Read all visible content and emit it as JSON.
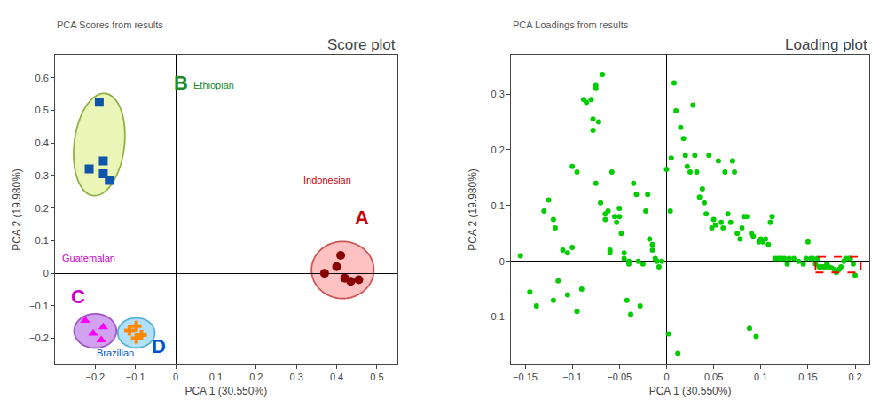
{
  "chart_data": [
    {
      "type": "scatter",
      "title": "Score plot",
      "subtitle": "PCA Scores from results",
      "x_label": "PCA 1 (30.550%)",
      "y_label": "PCA 2 (19.980%)",
      "xlim": [
        -0.3,
        0.55
      ],
      "ylim": [
        -0.28,
        0.67
      ],
      "xticks": [
        -0.2,
        -0.1,
        0.0,
        0.1,
        0.2,
        0.3,
        0.4,
        0.5
      ],
      "yticks": [
        -0.2,
        -0.1,
        0.0,
        0.1,
        0.2,
        0.3,
        0.4,
        0.5,
        0.6
      ],
      "grid": false,
      "series": [
        {
          "marker": "circle",
          "color": "#880000",
          "x": [
            0.37,
            0.4,
            0.42,
            0.435,
            0.41,
            0.455
          ],
          "values": [
            0.0,
            0.02,
            -0.015,
            -0.025,
            0.055,
            -0.02
          ],
          "ellipse": {
            "cx": 0.415,
            "cy": 0.01,
            "width": 0.155,
            "height": 0.175,
            "angle": 0,
            "color": "#ffbbbb",
            "edge_color": "#cc4444"
          },
          "letter": {
            "text": "A",
            "x": 0.44,
            "y": 0.13,
            "color": "#cc0000"
          },
          "label": {
            "text": "Indonesian",
            "x": 0.305,
            "y": 0.265,
            "color": "#cc0000"
          }
        },
        {
          "marker": "square",
          "color": "#1155aa",
          "x": [
            -0.19,
            -0.18,
            -0.215,
            -0.18,
            -0.165
          ],
          "values": [
            0.525,
            0.345,
            0.32,
            0.305,
            0.285
          ],
          "ellipse": {
            "cx": -0.19,
            "cy": 0.395,
            "width": 0.125,
            "height": 0.315,
            "angle": -5,
            "color": "#e8f5b0",
            "edge_color": "#88aa33"
          },
          "letter": {
            "text": "B",
            "x": -0.01,
            "y": 0.545,
            "color": "#228B22"
          },
          "label": {
            "text": "Ethiopian",
            "x": 0.03,
            "y": 0.555,
            "color": "#228B22"
          }
        },
        {
          "marker": "triangle-up",
          "color": "#ff00ff",
          "x": [
            -0.225,
            -0.205,
            -0.185,
            -0.18
          ],
          "values": [
            -0.145,
            -0.185,
            -0.205,
            -0.165
          ],
          "ellipse": {
            "cx": -0.2,
            "cy": -0.177,
            "width": 0.105,
            "height": 0.105,
            "angle": 0,
            "color": "#cc99ee",
            "edge_color": "#9944bb"
          },
          "letter": {
            "text": "C",
            "x": -0.265,
            "y": -0.11,
            "color": "#cc00cc"
          },
          "label": {
            "text": "Guatemalan",
            "x": -0.295,
            "y": 0.025,
            "color": "#cc00cc"
          }
        },
        {
          "marker": "cross",
          "color": "#ff8800",
          "x": [
            -0.115,
            -0.098,
            -0.085,
            -0.098
          ],
          "values": [
            -0.175,
            -0.2,
            -0.19,
            -0.162
          ],
          "ellipse": {
            "cx": -0.098,
            "cy": -0.183,
            "width": 0.092,
            "height": 0.092,
            "angle": 0,
            "color": "#aaddff",
            "edge_color": "#44aacc"
          },
          "letter": {
            "text": "D",
            "x": -0.065,
            "y": -0.265,
            "color": "#0055cc"
          },
          "label": {
            "text": "Brazilian",
            "x": -0.09,
            "y": -0.267,
            "color": "#0055cc"
          }
        }
      ]
    },
    {
      "type": "scatter",
      "title": "Loading plot",
      "subtitle": "PCA Loadings from results",
      "x_label": "PCA 1 (30.550%)",
      "y_label": "PCA 2 (19.980%)",
      "xlim": [
        -0.165,
        0.215
      ],
      "ylim": [
        -0.185,
        0.37
      ],
      "xticks": [
        -0.15,
        -0.1,
        -0.05,
        0,
        0.05,
        0.1,
        0.15,
        0.2
      ],
      "yticks": [
        -0.1,
        0,
        0.1,
        0.2,
        0.3
      ],
      "grid": false,
      "series": [
        {
          "marker": "circle",
          "color": "#00cc00",
          "x": [
            -0.155,
            -0.145,
            -0.138,
            -0.13,
            -0.125,
            -0.12,
            -0.12,
            -0.118,
            -0.115,
            -0.11,
            -0.105,
            -0.105,
            -0.1,
            -0.1,
            -0.095,
            -0.095,
            -0.09,
            -0.088,
            -0.085,
            -0.08,
            -0.078,
            -0.078,
            -0.075,
            -0.075,
            -0.075,
            -0.072,
            -0.07,
            -0.068,
            -0.065,
            -0.065,
            -0.062,
            -0.06,
            -0.06,
            -0.058,
            -0.055,
            -0.053,
            -0.05,
            -0.05,
            -0.048,
            -0.045,
            -0.045,
            -0.042,
            -0.04,
            -0.04,
            -0.038,
            -0.035,
            -0.032,
            -0.03,
            -0.028,
            -0.025,
            -0.022,
            -0.02,
            -0.018,
            -0.015,
            -0.015,
            -0.012,
            -0.01,
            -0.008,
            -0.005,
            0.0,
            0.002,
            0.004,
            0.005,
            0.008,
            0.01,
            0.012,
            0.015,
            0.018,
            0.02,
            0.022,
            0.025,
            0.028,
            0.03,
            0.032,
            0.035,
            0.038,
            0.04,
            0.042,
            0.045,
            0.048,
            0.05,
            0.052,
            0.055,
            0.058,
            0.06,
            0.062,
            0.065,
            0.068,
            0.07,
            0.072,
            0.075,
            0.078,
            0.08,
            0.082,
            0.085,
            0.088,
            0.09,
            0.092,
            0.095,
            0.098,
            0.1,
            0.102,
            0.105,
            0.108,
            0.11,
            0.112,
            0.115,
            0.118,
            0.12,
            0.122,
            0.125,
            0.128,
            0.13,
            0.135,
            0.14,
            0.145,
            0.148,
            0.15,
            0.153,
            0.155,
            0.158,
            0.16,
            0.162,
            0.165,
            0.168,
            0.17,
            0.172,
            0.175,
            0.178,
            0.18,
            0.183,
            0.185,
            0.188,
            0.19,
            0.193,
            0.195,
            0.198,
            0.2
          ],
          "values": [
            0.01,
            -0.055,
            -0.08,
            0.09,
            0.11,
            0.075,
            -0.07,
            0.06,
            -0.035,
            0.02,
            0.015,
            -0.06,
            0.17,
            0.025,
            0.16,
            -0.09,
            -0.05,
            0.29,
            0.285,
            0.29,
            0.255,
            0.235,
            0.31,
            0.315,
            0.14,
            0.25,
            0.105,
            0.335,
            0.085,
            0.075,
            0.09,
            0.02,
            0.015,
            0.16,
            0.08,
            0.07,
            0.095,
            0.08,
            0.05,
            0.015,
            0.005,
            -0.07,
            0.0,
            -0.005,
            -0.095,
            0.14,
            0.12,
            0.0,
            -0.08,
            -0.005,
            0.09,
            0.12,
            0.04,
            0.03,
            0.02,
            0.005,
            0.0,
            -0.01,
            0.0,
            0.165,
            -0.13,
            0.09,
            0.185,
            0.32,
            0.27,
            -0.165,
            0.24,
            0.22,
            0.19,
            0.17,
            0.16,
            0.28,
            0.19,
            0.16,
            0.115,
            0.13,
            0.105,
            0.085,
            0.19,
            0.06,
            0.075,
            0.065,
            0.18,
            0.07,
            0.06,
            0.16,
            0.085,
            0.07,
            0.18,
            0.16,
            0.05,
            0.04,
            0.06,
            0.08,
            0.08,
            -0.12,
            0.05,
            0.045,
            -0.135,
            0.035,
            0.04,
            0.035,
            0.04,
            0.03,
            0.07,
            0.08,
            0.005,
            0.005,
            0.005,
            0.005,
            0.005,
            -0.005,
            0.005,
            0.005,
            0.0,
            -0.005,
            0.005,
            0.035,
            0.005,
            0.005,
            -0.005,
            0.005,
            -0.01,
            -0.01,
            -0.01,
            -0.005,
            -0.01,
            -0.012,
            -0.015,
            -0.02,
            -0.015,
            -0.01,
            0.0,
            0.005,
            0.005,
            0.005,
            -0.005,
            -0.025
          ]
        }
      ],
      "highlight": {
        "x": 0.158,
        "y": -0.02,
        "width": 0.048,
        "height": 0.028,
        "color": "#ff0000"
      }
    }
  ]
}
